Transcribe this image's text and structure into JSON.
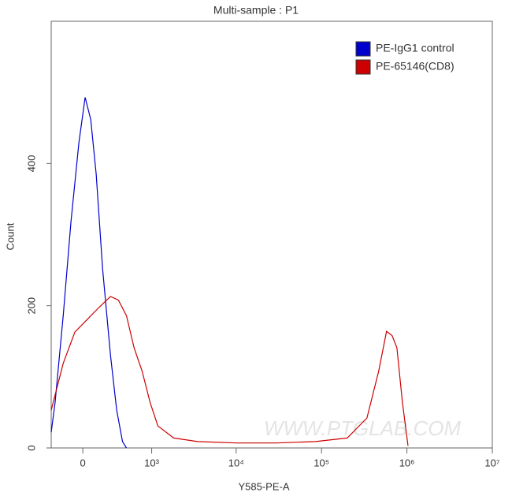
{
  "chart_data": {
    "type": "line",
    "title": "Multi-sample : P1",
    "x_label": "Y585-PE-A",
    "y_label": "Count",
    "watermark": "WWW.PTGLAB.COM",
    "xscale": "arcsinh",
    "legend": "top-right",
    "xlim": [
      -307,
      10000000
    ],
    "xticks": [
      0,
      {
        "value": 1000,
        "label": "10³"
      },
      {
        "value": 10000,
        "label": "10⁴"
      },
      {
        "value": 100000,
        "label": "10⁵"
      },
      {
        "value": 1000000,
        "label": "10⁶"
      },
      {
        "value": 10000000,
        "label": "10⁷"
      }
    ],
    "ylim": [
      0,
      600
    ],
    "yticks": [
      0,
      200,
      400
    ],
    "series": [
      {
        "name": "PE-IgG1 control",
        "color": "#0000cc",
        "x": [
          -307,
          -262,
          -177,
          -104,
          -34,
          20,
          69,
          118,
          179,
          262,
          335,
          412,
          470
        ],
        "values": [
          22,
          64,
          186,
          318,
          429,
          493,
          462,
          385,
          252,
          130,
          53,
          9,
          0
        ]
      },
      {
        "name": "PE-65146(CD8)",
        "color": "#cc0000",
        "x": [
          -307,
          -177,
          -69,
          34,
          140,
          262,
          356,
          470,
          597,
          760,
          956,
          1190,
          1840,
          3520,
          10200,
          29300,
          85000,
          200000,
          340000,
          467000,
          577000,
          670000,
          763000,
          886000,
          1030000
        ],
        "values": [
          53,
          119,
          163,
          180,
          197,
          213,
          208,
          186,
          141,
          108,
          64,
          31,
          14,
          9,
          7,
          7,
          9,
          14,
          42,
          108,
          164,
          158,
          141,
          64,
          3
        ]
      }
    ]
  }
}
